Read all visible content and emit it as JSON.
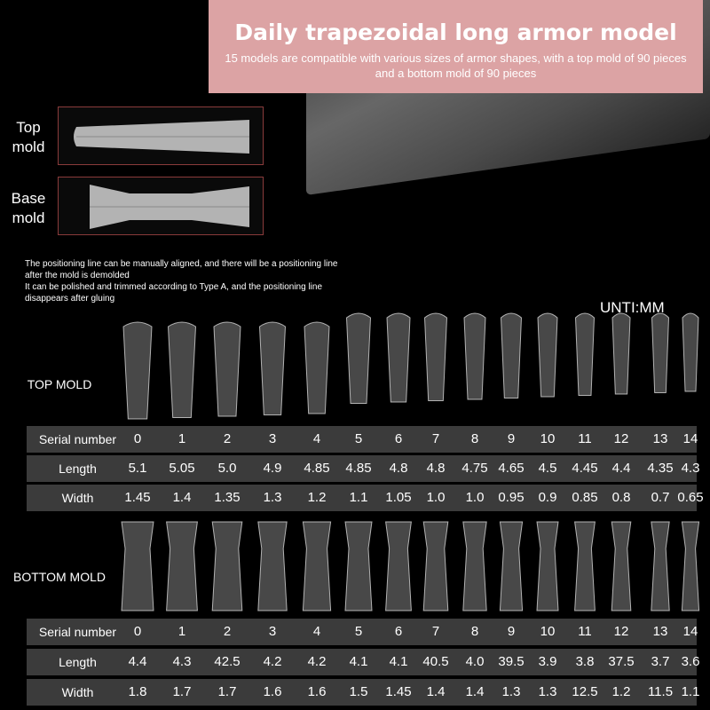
{
  "banner": {
    "title": "Daily trapezoidal long armor model",
    "subtitle": "15 models are compatible with various sizes of armor shapes, with a top mold of 90 pieces and a bottom mold of 90 pieces"
  },
  "molds": {
    "top_label": "Top mold",
    "base_label": "Base mold"
  },
  "note": {
    "line1": "The positioning line can be manually aligned, and there will be a positioning line after the mold is demolded",
    "line2": "It can be polished and trimmed according to Type A, and the positioning line disappears after gluing"
  },
  "unit": "UNTI:MM",
  "top": {
    "label": "TOP MOLD",
    "serial_label": "Serial number",
    "length_label": "Length",
    "width_label": "Width",
    "serial": [
      "0",
      "1",
      "2",
      "3",
      "4",
      "5",
      "6",
      "7",
      "8",
      "9",
      "10",
      "11",
      "12",
      "13",
      "14"
    ],
    "length": [
      "5.1",
      "5.05",
      "5.0",
      "4.9",
      "4.85",
      "4.85",
      "4.8",
      "4.8",
      "4.75",
      "4.65",
      "4.5",
      "4.45",
      "4.4",
      "4.35",
      "4.3"
    ],
    "width": [
      "1.45",
      "1.4",
      "1.35",
      "1.3",
      "1.2",
      "1.1",
      "1.05",
      "1.0",
      "1.0",
      "0.95",
      "0.9",
      "0.85",
      "0.8",
      "0.7",
      "0.65"
    ]
  },
  "bottom": {
    "label": "BOTTOM MOLD",
    "serial_label": "Serial number",
    "length_label": "Length",
    "width_label": "Width",
    "serial": [
      "0",
      "1",
      "2",
      "3",
      "4",
      "5",
      "6",
      "7",
      "8",
      "9",
      "10",
      "11",
      "12",
      "13",
      "14"
    ],
    "length": [
      "4.4",
      "4.3",
      "42.5",
      "4.2",
      "4.2",
      "4.1",
      "4.1",
      "40.5",
      "4.0",
      "39.5",
      "3.9",
      "3.8",
      "37.5",
      "3.7",
      "3.6"
    ],
    "width": [
      "1.8",
      "1.7",
      "1.7",
      "1.6",
      "1.6",
      "1.5",
      "1.45",
      "1.4",
      "1.4",
      "1.3",
      "1.3",
      "12.5",
      "1.2",
      "11.5",
      "1.1"
    ]
  }
}
